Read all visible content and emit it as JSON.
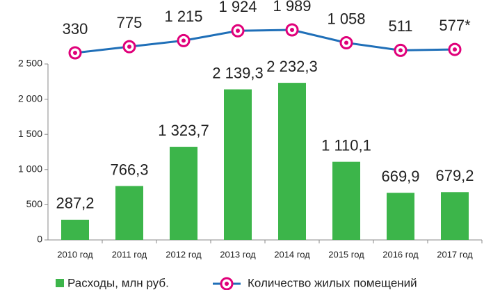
{
  "chart_data": {
    "type": "bar",
    "categories": [
      "2010 год",
      "2011 год",
      "2012 год",
      "2013 год",
      "2014 год",
      "2015 год",
      "2016 год",
      "2017 год"
    ],
    "series": [
      {
        "name": "Расходы, млн руб.",
        "type": "bar",
        "color": "#3cb54a",
        "values": [
          287.2,
          766.3,
          1323.7,
          2139.3,
          2232.3,
          1110.1,
          669.9,
          679.2
        ],
        "value_labels": [
          "287,2",
          "766,3",
          "1 323,7",
          "2 139,3",
          "2 232,3",
          "1 110,1",
          "669,9",
          "679,2"
        ]
      },
      {
        "name": "Количество жилых помещений",
        "type": "line",
        "color": "#1f6fb8",
        "marker_color": "#e0007a",
        "values": [
          330,
          775,
          1215,
          1924,
          1989,
          1058,
          511,
          577
        ],
        "value_labels": [
          "330",
          "775",
          "1 215",
          "1 924",
          "1 989",
          "1 058",
          "511",
          "577*"
        ]
      }
    ],
    "ylim": [
      0,
      2500
    ],
    "yticks": [
      0,
      500,
      {
        "value": 1000,
        "label": "1 000"
      },
      {
        "value": 1500,
        "label": "1 500"
      },
      {
        "value": 2000,
        "label": "2 000"
      },
      {
        "value": 2500,
        "label": "2 500"
      }
    ],
    "grid": false
  }
}
